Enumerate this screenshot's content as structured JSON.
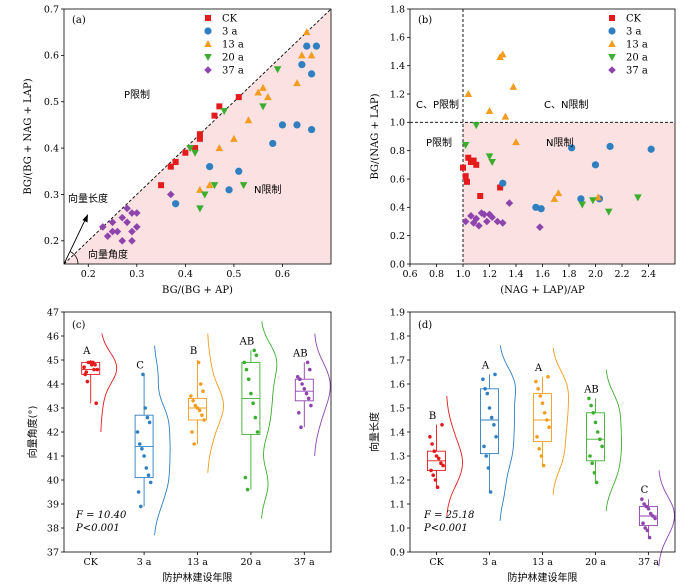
{
  "colors": {
    "CK": "#e41a1c",
    "3 a": "#2f7fc1",
    "13 a": "#f39c1f",
    "20 a": "#3cae2f",
    "37 a": "#8e44ad",
    "shade": "#fbe1e1"
  },
  "legend": [
    "CK",
    "3 a",
    "13 a",
    "20 a",
    "37 a"
  ],
  "chart_data": [
    {
      "type": "scatter",
      "panel": "(a)",
      "xlabel": "BG/(BG + AP)",
      "ylabel": "BG/(BG + NAG + LAP)",
      "xlim": [
        0.15,
        0.7
      ],
      "ylim": [
        0.15,
        0.7
      ],
      "xticks": [
        0.2,
        0.3,
        0.4,
        0.5,
        0.6
      ],
      "yticks": [
        0.2,
        0.3,
        0.4,
        0.5,
        0.6,
        0.7
      ],
      "annotations": {
        "p_region": "P限制",
        "n_region": "N限制",
        "vector_length": "向量长度",
        "vector_angle": "向量角度"
      },
      "series": [
        {
          "name": "CK",
          "x": [
            0.35,
            0.37,
            0.38,
            0.4,
            0.42,
            0.43,
            0.43,
            0.46,
            0.51,
            0.47
          ],
          "y": [
            0.32,
            0.36,
            0.37,
            0.39,
            0.4,
            0.42,
            0.43,
            0.47,
            0.51,
            0.49
          ]
        },
        {
          "name": "3 a",
          "x": [
            0.38,
            0.45,
            0.49,
            0.51,
            0.58,
            0.6,
            0.63,
            0.64,
            0.65,
            0.66,
            0.66,
            0.67
          ],
          "y": [
            0.28,
            0.36,
            0.31,
            0.35,
            0.41,
            0.45,
            0.45,
            0.58,
            0.62,
            0.56,
            0.44,
            0.62
          ]
        },
        {
          "name": "13 a",
          "x": [
            0.43,
            0.45,
            0.47,
            0.5,
            0.53,
            0.55,
            0.56,
            0.57,
            0.63,
            0.64,
            0.65,
            0.66
          ],
          "y": [
            0.31,
            0.32,
            0.4,
            0.42,
            0.46,
            0.52,
            0.53,
            0.51,
            0.54,
            0.6,
            0.65,
            0.6
          ]
        },
        {
          "name": "20 a",
          "x": [
            0.41,
            0.42,
            0.43,
            0.44,
            0.46,
            0.48,
            0.52,
            0.56,
            0.59
          ],
          "y": [
            0.4,
            0.39,
            0.27,
            0.3,
            0.32,
            0.48,
            0.32,
            0.49,
            0.57
          ]
        },
        {
          "name": "37 a",
          "x": [
            0.23,
            0.24,
            0.25,
            0.26,
            0.27,
            0.28,
            0.28,
            0.29,
            0.29,
            0.3,
            0.3,
            0.25,
            0.27,
            0.29,
            0.37
          ],
          "y": [
            0.23,
            0.21,
            0.24,
            0.22,
            0.25,
            0.24,
            0.27,
            0.26,
            0.2,
            0.26,
            0.23,
            0.22,
            0.2,
            0.22,
            0.3
          ]
        }
      ]
    },
    {
      "type": "scatter",
      "panel": "(b)",
      "xlabel": "(NAG + LAP)/AP",
      "ylabel": "BG/(NAG + LAP)",
      "xlim": [
        0.6,
        2.6
      ],
      "ylim": [
        0,
        1.8
      ],
      "xticks": [
        0.6,
        0.8,
        1.0,
        1.2,
        1.4,
        1.6,
        1.8,
        2.0,
        2.2,
        2.4
      ],
      "yticks": [
        0,
        0.2,
        0.4,
        0.6,
        0.8,
        1.0,
        1.2,
        1.4,
        1.6,
        1.8
      ],
      "annotations": {
        "cp_region": "C、P限制",
        "cn_region": "C、N限制",
        "p_region": "P限制",
        "n_region": "N限制"
      },
      "series": [
        {
          "name": "CK",
          "x": [
            1.0,
            1.02,
            1.03,
            1.04,
            1.06,
            1.08,
            1.1,
            1.13,
            1.28
          ],
          "y": [
            0.68,
            0.62,
            0.58,
            0.75,
            0.72,
            0.73,
            0.7,
            0.48,
            0.54
          ]
        },
        {
          "name": "3 a",
          "x": [
            1.3,
            1.55,
            1.59,
            1.82,
            1.89,
            2.0,
            2.03,
            2.11,
            2.42
          ],
          "y": [
            0.57,
            0.4,
            0.39,
            0.82,
            0.46,
            0.7,
            0.46,
            0.83,
            0.81
          ]
        },
        {
          "name": "13 a",
          "x": [
            1.04,
            1.2,
            1.28,
            1.3,
            1.32,
            1.38,
            1.4,
            1.69,
            1.72,
            2.02
          ],
          "y": [
            1.2,
            1.08,
            1.46,
            1.48,
            1.04,
            1.25,
            0.86,
            0.46,
            0.5,
            0.47
          ]
        },
        {
          "name": "20 a",
          "x": [
            1.02,
            1.1,
            1.2,
            1.22,
            1.9,
            1.98,
            2.1,
            2.32
          ],
          "y": [
            0.84,
            0.98,
            0.76,
            0.72,
            0.42,
            0.45,
            0.37,
            0.47
          ]
        },
        {
          "name": "37 a",
          "x": [
            1.02,
            1.06,
            1.08,
            1.1,
            1.14,
            1.16,
            1.18,
            1.2,
            1.22,
            1.26,
            1.3,
            1.35,
            1.58,
            1.12
          ],
          "y": [
            0.3,
            0.34,
            0.29,
            0.32,
            0.36,
            0.35,
            0.3,
            0.35,
            0.33,
            0.3,
            0.29,
            0.43,
            0.26,
            0.27
          ]
        }
      ]
    },
    {
      "type": "box",
      "panel": "(c)",
      "xlabel": "防护林建设年限",
      "ylabel": "向量角度(°)",
      "ylim": [
        37,
        47
      ],
      "yticks": [
        37,
        38,
        39,
        40,
        41,
        42,
        43,
        44,
        45,
        46,
        47
      ],
      "stats_text": {
        "f": "F = 10.40",
        "p": "P<0.001"
      },
      "groups": [
        {
          "name": "CK",
          "letter": "A",
          "q1": 44.4,
          "median": 44.6,
          "q3": 44.9,
          "whisker_low": 43.2,
          "whisker_high": 45.0,
          "points": [
            44.1,
            44.4,
            44.6,
            44.8,
            44.9,
            44.9,
            44.9,
            44.5,
            44.7,
            43.2,
            44.6,
            44.8
          ]
        },
        {
          "name": "3 a",
          "letter": "C",
          "q1": 40.1,
          "median": 41.4,
          "q3": 42.7,
          "whisker_low": 38.9,
          "whisker_high": 44.4,
          "points": [
            38.9,
            39.5,
            39.9,
            40.2,
            40.5,
            41.0,
            41.3,
            41.5,
            42.0,
            42.4,
            42.6,
            43.0,
            44.4
          ]
        },
        {
          "name": "13 a",
          "letter": "B",
          "q1": 42.5,
          "median": 43.0,
          "q3": 43.4,
          "whisker_low": 41.5,
          "whisker_high": 45.0,
          "points": [
            41.5,
            42.0,
            42.5,
            42.7,
            42.9,
            43.0,
            43.1,
            43.3,
            43.5,
            43.7,
            44.0,
            44.9
          ]
        },
        {
          "name": "20 a",
          "letter": "AB",
          "q1": 41.9,
          "median": 43.4,
          "q3": 44.9,
          "whisker_low": 39.6,
          "whisker_high": 45.4,
          "points": [
            39.6,
            40.1,
            42.0,
            42.6,
            43.2,
            43.6,
            44.2,
            44.6,
            44.9,
            45.2,
            45.4
          ]
        },
        {
          "name": "37 a",
          "letter": "AB",
          "q1": 43.3,
          "median": 43.7,
          "q3": 44.2,
          "whisker_low": 42.2,
          "whisker_high": 44.9,
          "points": [
            42.2,
            42.8,
            43.1,
            43.4,
            43.6,
            43.8,
            44.0,
            44.2,
            44.3,
            44.6,
            44.9
          ]
        }
      ]
    },
    {
      "type": "box",
      "panel": "(d)",
      "xlabel": "防护林建设年限",
      "ylabel": "向量长度",
      "ylim": [
        0.9,
        1.9
      ],
      "yticks": [
        0.9,
        1.0,
        1.1,
        1.2,
        1.3,
        1.4,
        1.5,
        1.6,
        1.7,
        1.8,
        1.9
      ],
      "stats_text": {
        "f": "F = 25.18",
        "p": "P<0.001"
      },
      "groups": [
        {
          "name": "CK",
          "letter": "B",
          "q1": 1.24,
          "median": 1.28,
          "q3": 1.32,
          "whisker_low": 1.17,
          "whisker_high": 1.43,
          "points": [
            1.17,
            1.2,
            1.22,
            1.24,
            1.26,
            1.27,
            1.29,
            1.3,
            1.32,
            1.35,
            1.38,
            1.43
          ]
        },
        {
          "name": "3 a",
          "letter": "A",
          "q1": 1.31,
          "median": 1.45,
          "q3": 1.58,
          "whisker_low": 1.15,
          "whisker_high": 1.64,
          "points": [
            1.15,
            1.25,
            1.3,
            1.34,
            1.38,
            1.43,
            1.46,
            1.5,
            1.56,
            1.58,
            1.62,
            1.64
          ]
        },
        {
          "name": "13 a",
          "letter": "A",
          "q1": 1.36,
          "median": 1.45,
          "q3": 1.56,
          "whisker_low": 1.26,
          "whisker_high": 1.63,
          "points": [
            1.26,
            1.3,
            1.33,
            1.38,
            1.42,
            1.45,
            1.48,
            1.52,
            1.55,
            1.58,
            1.61,
            1.63
          ]
        },
        {
          "name": "20 a",
          "letter": "AB",
          "q1": 1.28,
          "median": 1.37,
          "q3": 1.48,
          "whisker_low": 1.19,
          "whisker_high": 1.54,
          "points": [
            1.19,
            1.23,
            1.27,
            1.3,
            1.34,
            1.37,
            1.4,
            1.44,
            1.48,
            1.51,
            1.54
          ]
        },
        {
          "name": "37 a",
          "letter": "C",
          "q1": 1.01,
          "median": 1.05,
          "q3": 1.09,
          "whisker_low": 0.96,
          "whisker_high": 1.12,
          "points": [
            0.96,
            0.99,
            1.0,
            1.02,
            1.04,
            1.05,
            1.06,
            1.08,
            1.09,
            1.1,
            1.12
          ]
        }
      ]
    }
  ]
}
